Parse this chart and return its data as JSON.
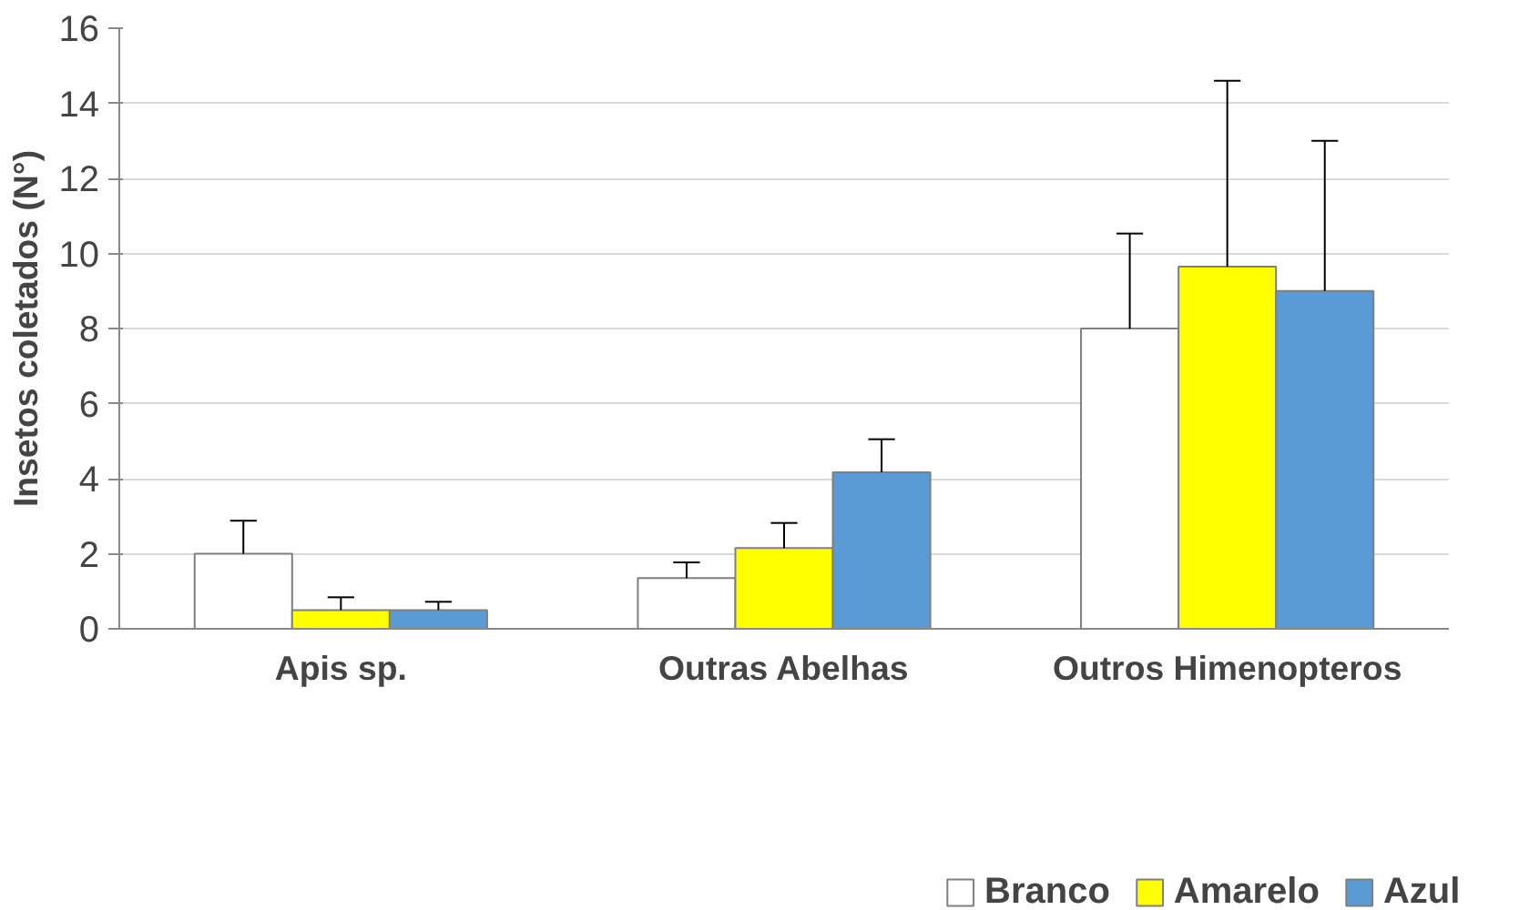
{
  "chart_data": {
    "type": "bar",
    "ylabel": "Insetos coletados (N°)",
    "categories": [
      "Apis sp.",
      "Outras Abelhas",
      "Outros Himenopteros"
    ],
    "series": [
      {
        "name": "Branco",
        "color": "#ffffff",
        "values": [
          2.0,
          1.35,
          8.0
        ],
        "errors": [
          [
            2.0,
            2.88
          ],
          [
            1.35,
            1.77
          ],
          [
            8.0,
            10.53
          ]
        ]
      },
      {
        "name": "Amarelo",
        "color": "#ffff00",
        "values": [
          0.5,
          2.15,
          9.65
        ],
        "errors": [
          [
            0.5,
            0.84
          ],
          [
            2.15,
            2.82
          ],
          [
            9.65,
            14.6
          ]
        ]
      },
      {
        "name": "Azul",
        "color": "#5b9bd5",
        "values": [
          0.5,
          4.17,
          9.0
        ],
        "errors": [
          [
            0.5,
            0.72
          ],
          [
            4.17,
            5.05
          ],
          [
            9.0,
            13.0
          ]
        ]
      }
    ],
    "ylim": [
      0,
      16
    ],
    "yticks": [
      0,
      2,
      4,
      6,
      8,
      10,
      12,
      14,
      16
    ],
    "grid": "y",
    "legend": "bottom"
  }
}
